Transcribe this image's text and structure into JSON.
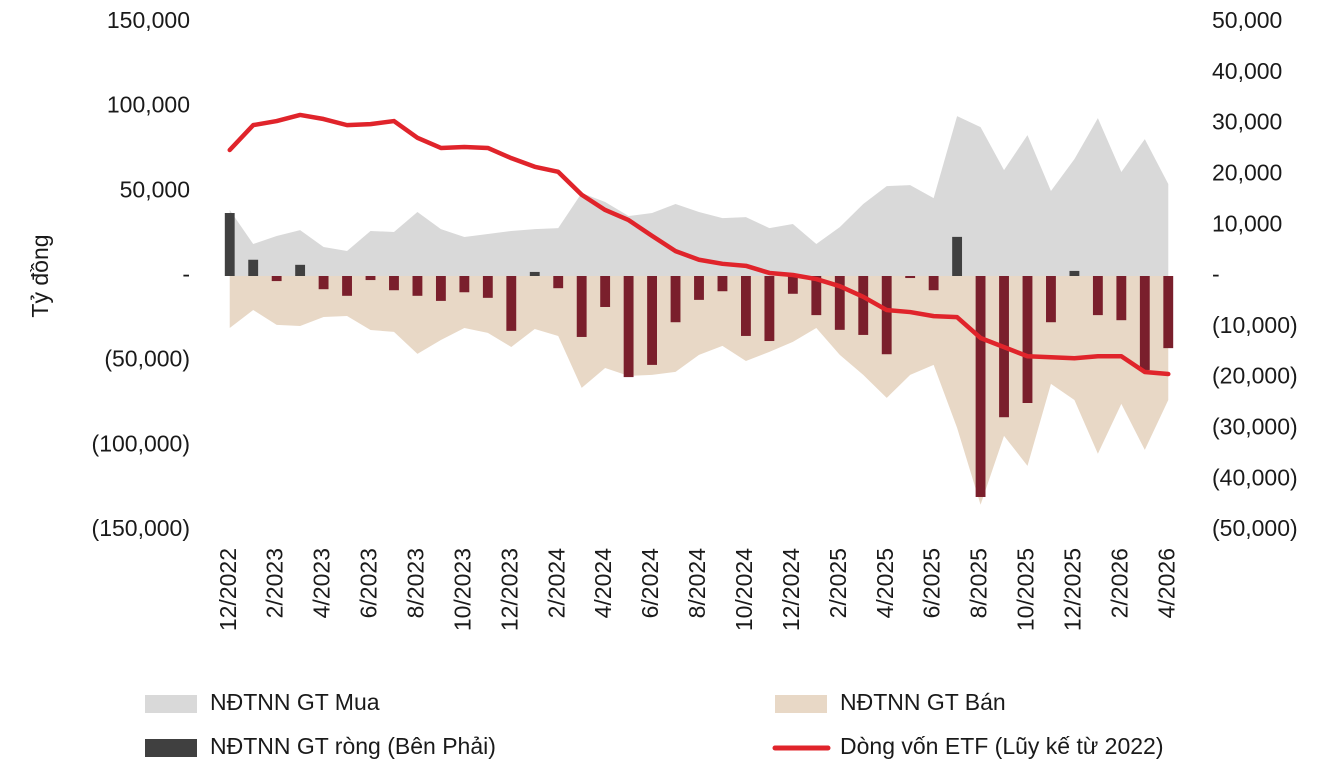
{
  "chart_data": {
    "type": "combo",
    "y_label": "Tỷ đồng",
    "categories": [
      "12/2022",
      null,
      "2/2023",
      null,
      "4/2023",
      null,
      "6/2023",
      null,
      "8/2023",
      null,
      "10/2023",
      null,
      "12/2023",
      null,
      "2/2024",
      null,
      "4/2024",
      null,
      "6/2024",
      null,
      "8/2024",
      null,
      "10/2024",
      null,
      "12/2024",
      null,
      "2/2025",
      null,
      "4/2025",
      null,
      "6/2025",
      null,
      "8/2025",
      null,
      "10/2025",
      null,
      "12/2025",
      null,
      "2/2026",
      null,
      "4/2026"
    ],
    "ylim": [
      -150000,
      150000
    ],
    "yticks": [
      {
        "value": -150000,
        "label": "(150,000)"
      },
      {
        "value": -100000,
        "label": "(100,000)"
      },
      {
        "value": -50000,
        "label": "(50,000)"
      },
      {
        "value": 0,
        "label": "-"
      },
      {
        "value": 50000,
        "label": "50,000"
      },
      {
        "value": 100000,
        "label": "100,000"
      },
      {
        "value": 150000,
        "label": "150,000"
      }
    ],
    "y2lim": [
      -50000,
      50000
    ],
    "y2ticks": [
      {
        "value": -50000,
        "label": "(50,000)"
      },
      {
        "value": -40000,
        "label": "(40,000)"
      },
      {
        "value": -30000,
        "label": "(30,000)"
      },
      {
        "value": -20000,
        "label": "(20,000)"
      },
      {
        "value": -10000,
        "label": "(10,000)"
      },
      {
        "value": 0,
        "label": "-"
      },
      {
        "value": 10000,
        "label": "10,000"
      },
      {
        "value": 20000,
        "label": "20,000"
      },
      {
        "value": 30000,
        "label": "30,000"
      },
      {
        "value": 40000,
        "label": "40,000"
      },
      {
        "value": 50000,
        "label": "50,000"
      }
    ],
    "series": [
      {
        "name": "NĐTNN GT Mua",
        "type": "area",
        "axis": "y",
        "color": "#d9d9d9",
        "values": [
          39000,
          18900,
          23600,
          27100,
          17100,
          14800,
          26600,
          26000,
          37800,
          27700,
          23000,
          24800,
          26600,
          27700,
          28300,
          49000,
          43700,
          35400,
          37200,
          42500,
          37800,
          34200,
          34800,
          28300,
          30700,
          18900,
          28900,
          42500,
          53100,
          53700,
          46000,
          94400,
          87900,
          62500,
          83200,
          50200,
          69000,
          93200,
          61400,
          80800,
          54300
        ]
      },
      {
        "name": "NĐTNN GT Bán",
        "type": "area",
        "axis": "y",
        "color": "#e8d8c6",
        "values": [
          -30700,
          -20100,
          -28900,
          -29500,
          -24200,
          -23600,
          -31900,
          -33000,
          -46000,
          -37800,
          -30700,
          -33600,
          -41900,
          -31300,
          -35400,
          -66100,
          -54300,
          -59000,
          -58400,
          -56600,
          -46600,
          -41300,
          -50200,
          -44800,
          -38900,
          -30700,
          -46600,
          -58400,
          -72000,
          -58400,
          -52500,
          -89700,
          -135100,
          -94400,
          -112100,
          -63700,
          -73200,
          -105000,
          -75500,
          -102700,
          -73200
        ]
      },
      {
        "name": "NĐTNN GT ròng (Bên Phải)",
        "type": "bar",
        "axis": "y2",
        "color": "#404040",
        "negative_color": "#7a1f2c",
        "values": [
          12400,
          3200,
          -1000,
          2200,
          -2600,
          -3900,
          -800,
          -2800,
          -3900,
          -4900,
          -3200,
          -4300,
          -10800,
          800,
          -2400,
          -12000,
          -6100,
          -19900,
          -17500,
          -9100,
          -4700,
          -3000,
          -11800,
          -12800,
          -3500,
          -7700,
          -10600,
          -11600,
          -15400,
          -400,
          -2800,
          7700,
          -43500,
          -27800,
          -25000,
          -9100,
          1000,
          -7700,
          -8700,
          -18500,
          -14200
        ]
      },
      {
        "name": "Dòng vốn ETF (Lũy kế từ 2022)",
        "type": "line",
        "axis": "y2",
        "color": "#e0242b",
        "values": [
          24800,
          29700,
          30500,
          31700,
          30900,
          29700,
          29900,
          30500,
          27200,
          25200,
          25400,
          25200,
          23200,
          21500,
          20500,
          16000,
          13000,
          11000,
          7900,
          4900,
          3200,
          2400,
          2000,
          600,
          200,
          -600,
          -2000,
          -4100,
          -6700,
          -7100,
          -7900,
          -8100,
          -12200,
          -14000,
          -15800,
          -16000,
          -16200,
          -15800,
          -15800,
          -18900,
          -19300
        ]
      }
    ]
  }
}
